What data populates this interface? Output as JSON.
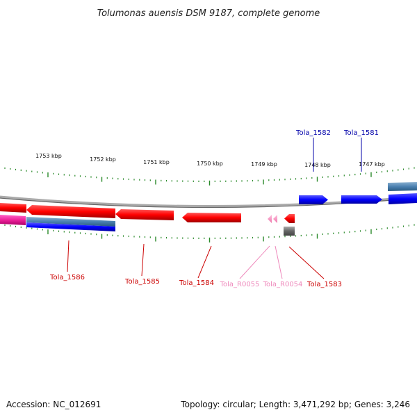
{
  "title": "Tolumonas auensis DSM 9187, complete genome",
  "footer": {
    "accession": "Accession: NC_012691",
    "summary": "Topology: circular; Length: 3,471,292 bp; Genes: 3,246"
  },
  "colors": {
    "forward_gene": "#0000ff",
    "reverse_gene": "#ff0000",
    "rna_gene": "#ff88bb",
    "gene_label_forward": "#0000aa",
    "gene_label_reverse": "#cc0000",
    "gene_label_rna": "#ee88bb",
    "tick": "#2a8a2a",
    "backbone": "#888888"
  },
  "scale_labels": [
    "1753 kbp",
    "1752 kbp",
    "1751 kbp",
    "1750 kbp",
    "1749 kbp",
    "1748 kbp",
    "1747 kbp"
  ],
  "genes": [
    {
      "name": "Tola_1582",
      "strand": "forward"
    },
    {
      "name": "Tola_1581",
      "strand": "forward"
    },
    {
      "name": "Tola_1586",
      "strand": "reverse"
    },
    {
      "name": "Tola_1585",
      "strand": "reverse"
    },
    {
      "name": "Tola_1584",
      "strand": "reverse"
    },
    {
      "name": "Tola_R0055",
      "strand": "rna"
    },
    {
      "name": "Tola_R0054",
      "strand": "rna"
    },
    {
      "name": "Tola_1583",
      "strand": "reverse"
    }
  ]
}
